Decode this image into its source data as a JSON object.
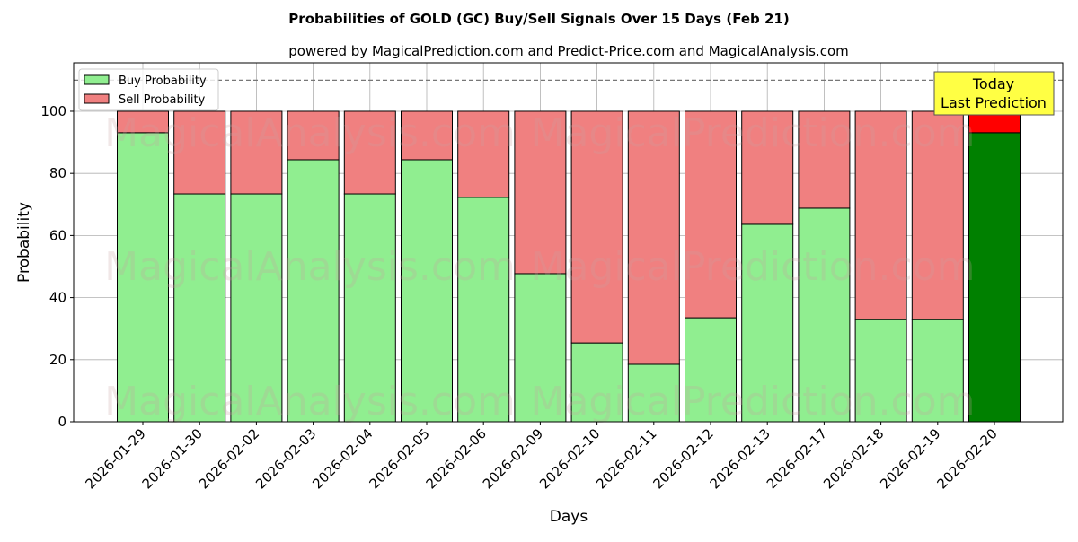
{
  "chart_data": {
    "type": "bar",
    "stacked": true,
    "title": "Probabilities of GOLD (GC) Buy/Sell Signals Over 15 Days (Feb 21)",
    "subtitle": "powered by MagicalPrediction.com and Predict-Price.com and MagicalAnalysis.com",
    "xlabel": "Days",
    "ylabel": "Probability",
    "ylim": [
      0,
      115.6
    ],
    "yticks": [
      0,
      20,
      40,
      60,
      80,
      100
    ],
    "grid": true,
    "legend_position": "top-left",
    "reference_line": 110,
    "categories": [
      "2026-01-29",
      "2026-01-30",
      "2026-02-02",
      "2026-02-03",
      "2026-02-04",
      "2026-02-05",
      "2026-02-06",
      "2026-02-09",
      "2026-02-10",
      "2026-02-11",
      "2026-02-12",
      "2026-02-13",
      "2026-02-17",
      "2026-02-18",
      "2026-02-19",
      "2026-02-20"
    ],
    "series": [
      {
        "name": "Buy Probability",
        "color": "#90ee90",
        "values": [
          93.1,
          73.4,
          73.4,
          84.4,
          73.4,
          84.4,
          72.3,
          47.7,
          25.4,
          18.5,
          33.5,
          63.6,
          68.8,
          32.9,
          32.9,
          93.1
        ]
      },
      {
        "name": "Sell Probability",
        "color": "#f08080",
        "values": [
          6.9,
          26.6,
          26.6,
          15.6,
          26.6,
          15.6,
          27.7,
          52.3,
          74.6,
          81.5,
          66.5,
          36.4,
          31.2,
          67.1,
          67.1,
          6.9
        ]
      }
    ],
    "highlight": {
      "index": 15,
      "buy_color": "#008000",
      "sell_color": "#ff0000"
    },
    "annotation": {
      "line1": "Today",
      "line2": "Last Prediction",
      "color": "#ffff44"
    },
    "watermarks": [
      "MagicalAnalysis.com",
      "MagicalPrediction.com"
    ]
  }
}
